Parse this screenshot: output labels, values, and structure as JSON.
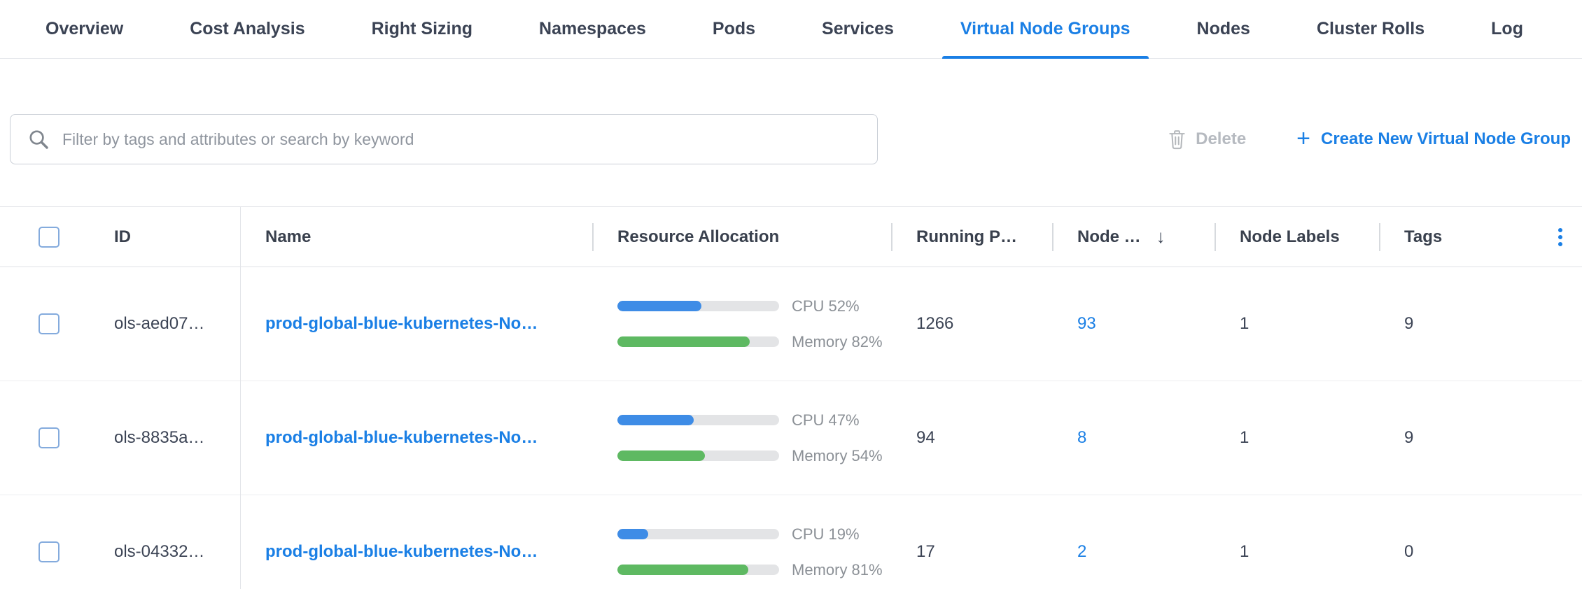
{
  "colors": {
    "accent_blue": "#1a7fe5",
    "bar_blue": "#3e8ce6",
    "bar_green": "#5eb962"
  },
  "tabs": [
    {
      "label": "Overview",
      "active": false
    },
    {
      "label": "Cost Analysis",
      "active": false
    },
    {
      "label": "Right Sizing",
      "active": false
    },
    {
      "label": "Namespaces",
      "active": false
    },
    {
      "label": "Pods",
      "active": false
    },
    {
      "label": "Services",
      "active": false
    },
    {
      "label": "Virtual Node Groups",
      "active": true
    },
    {
      "label": "Nodes",
      "active": false
    },
    {
      "label": "Cluster Rolls",
      "active": false
    },
    {
      "label": "Log",
      "active": false
    }
  ],
  "toolbar": {
    "filter_placeholder": "Filter by tags and attributes or search by keyword",
    "delete_label": "Delete",
    "create_label": "Create New Virtual Node Group"
  },
  "table": {
    "headers": {
      "id": "ID",
      "name": "Name",
      "resource": "Resource Allocation",
      "running_pods": "Running P…",
      "nodes": "Node …",
      "node_labels": "Node Labels",
      "tags": "Tags"
    },
    "rows": [
      {
        "id": "ols-aed07…",
        "name": "prod-global-blue-kubernetes-No…",
        "cpu_pct": 52,
        "cpu_label": "CPU 52%",
        "mem_pct": 82,
        "mem_label": "Memory 82%",
        "running_pods": "1266",
        "nodes": "93",
        "node_labels": "1",
        "tags": "9"
      },
      {
        "id": "ols-8835a…",
        "name": "prod-global-blue-kubernetes-No…",
        "cpu_pct": 47,
        "cpu_label": "CPU 47%",
        "mem_pct": 54,
        "mem_label": "Memory 54%",
        "running_pods": "94",
        "nodes": "8",
        "node_labels": "1",
        "tags": "9"
      },
      {
        "id": "ols-04332…",
        "name": "prod-global-blue-kubernetes-No…",
        "cpu_pct": 19,
        "cpu_label": "CPU 19%",
        "mem_pct": 81,
        "mem_label": "Memory 81%",
        "running_pods": "17",
        "nodes": "2",
        "node_labels": "1",
        "tags": "0"
      }
    ]
  }
}
